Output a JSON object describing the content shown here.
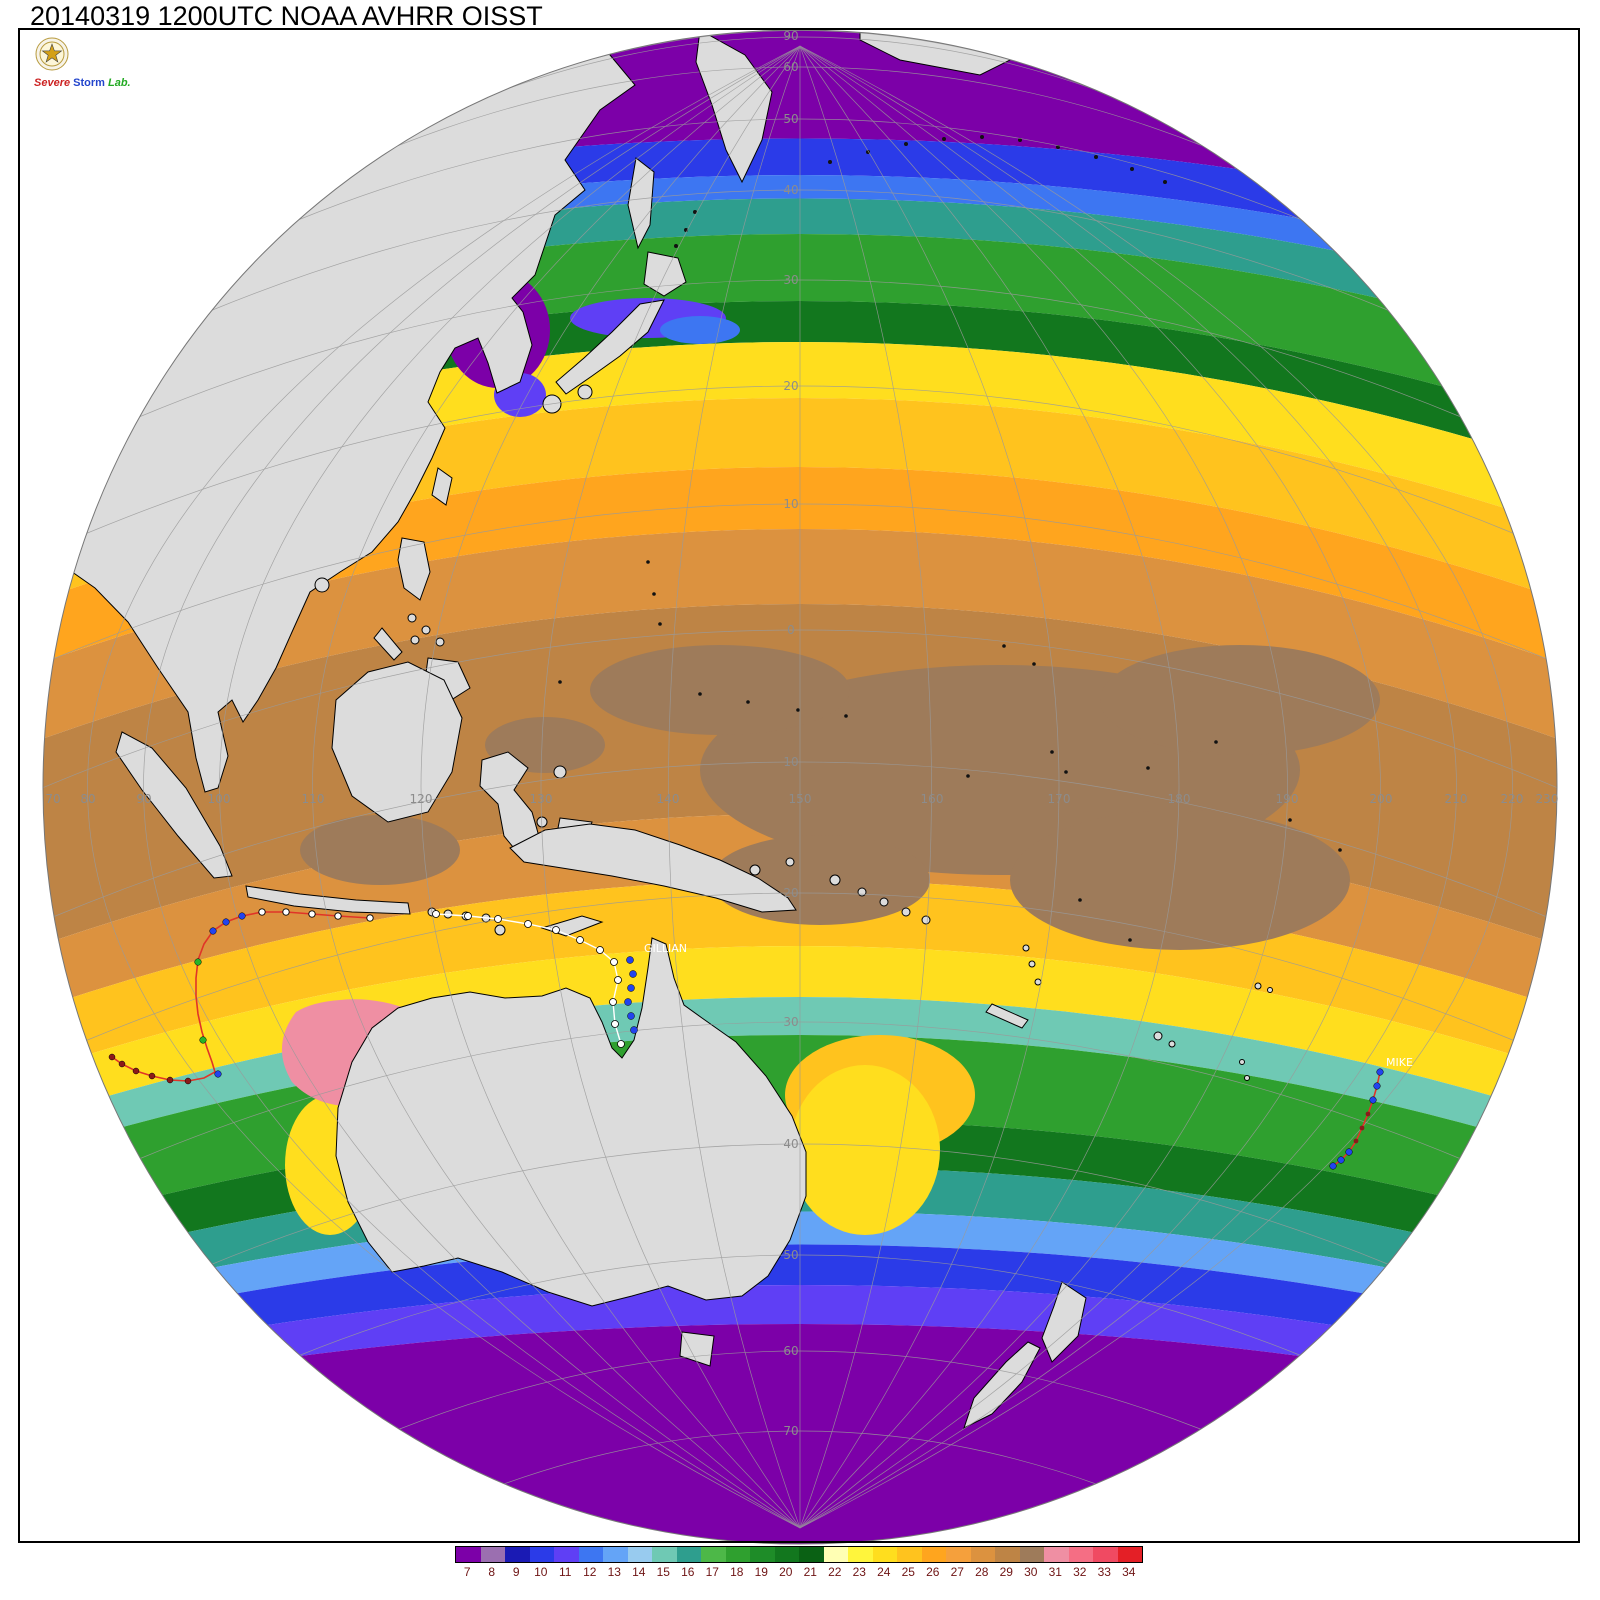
{
  "title": "20140319 1200UTC NOAA AVHRR OISST",
  "logo": {
    "line1": "Severe",
    "line2": "Storm",
    "line3": "Lab."
  },
  "globe": {
    "lon_labels": [
      "70",
      "80",
      "90",
      "100",
      "110",
      "120",
      "130",
      "140",
      "150",
      "160",
      "170",
      "180",
      "190",
      "200",
      "210",
      "220",
      "230"
    ],
    "lat_labels": [
      "90",
      "60",
      "50",
      "40",
      "30",
      "20",
      "10",
      "0",
      "10",
      "20",
      "30",
      "40",
      "50",
      "60",
      "70"
    ]
  },
  "storms": [
    {
      "name": "GILLIAN"
    },
    {
      "name": "MIKE"
    }
  ],
  "colorbar": {
    "values": [
      "7",
      "8",
      "9",
      "10",
      "11",
      "12",
      "13",
      "14",
      "15",
      "16",
      "17",
      "18",
      "19",
      "20",
      "21",
      "22",
      "23",
      "24",
      "25",
      "26",
      "27",
      "28",
      "29",
      "30",
      "31",
      "32",
      "33",
      "34"
    ],
    "colors": [
      "#7C00A8",
      "#9B6FB0",
      "#1A1AB4",
      "#2B3BE8",
      "#5F3FF5",
      "#3D76F2",
      "#64A4F7",
      "#98CBEF",
      "#6FC9B4",
      "#2E9E8E",
      "#4DB848",
      "#2FA02F",
      "#1E8C28",
      "#12771E",
      "#0A6114",
      "#FFFFB4",
      "#FFF53C",
      "#FFDE1E",
      "#FFC31E",
      "#FFA51E",
      "#F5A03C",
      "#DC923F",
      "#BE8445",
      "#9E7B5A",
      "#EF8FA3",
      "#F56E84",
      "#F04A62",
      "#E41F26"
    ],
    "number_color": "#6e1414"
  },
  "map_colors": {
    "land": "#DCDCDC",
    "coast": "#000000",
    "grid": "#9a9a9a",
    "label": "#8c8c8c",
    "track_red": "#E03428",
    "track_blue": "#2244EE",
    "track_green": "#28B428",
    "track_dark": "#8B1A1A",
    "track_white": "#FFFFFF"
  }
}
